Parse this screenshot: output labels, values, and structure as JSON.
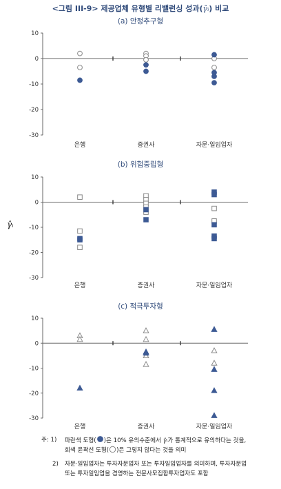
{
  "figure": {
    "title_prefix": "<그림 III-9> 제공업체 유형별 리밸런싱 성과(",
    "title_symbol": "γ̂ᵢ",
    "title_suffix": ") 비교",
    "y_axis_label": "γ̂ᵢ"
  },
  "colors": {
    "title": "#2f4a7a",
    "filled": "#3d5a94",
    "hollow_stroke": "#888888",
    "axis": "#666666"
  },
  "chart_data": [
    {
      "type": "scatter",
      "title": "(a) 안정추구형",
      "marker": "circle",
      "categories": [
        "은행",
        "증권사",
        "자문·일임업자"
      ],
      "ylim": [
        -30,
        10
      ],
      "yticks": [
        10,
        0,
        -10,
        -20,
        -30
      ],
      "series": [
        {
          "filled": false,
          "points": [
            [
              0,
              2
            ],
            [
              0,
              -3.5
            ],
            [
              1,
              2
            ],
            [
              1,
              1
            ],
            [
              1,
              -0.5
            ],
            [
              2,
              0
            ],
            [
              2,
              -3.5
            ]
          ]
        },
        {
          "filled": true,
          "points": [
            [
              0,
              -8.5
            ],
            [
              1,
              -2.5
            ],
            [
              1,
              -5
            ],
            [
              2,
              1.5
            ],
            [
              2,
              -5.5
            ],
            [
              2,
              -7
            ],
            [
              2,
              -9.5
            ]
          ]
        }
      ]
    },
    {
      "type": "scatter",
      "title": "(b) 위험중립형",
      "marker": "square",
      "categories": [
        "은행",
        "증권사",
        "자문·일임업자"
      ],
      "ylim": [
        -30,
        10
      ],
      "yticks": [
        10,
        0,
        -10,
        -20,
        -30
      ],
      "series": [
        {
          "filled": false,
          "points": [
            [
              0,
              2
            ],
            [
              0,
              -11.5
            ],
            [
              0,
              -18
            ],
            [
              1,
              2.5
            ],
            [
              1,
              1
            ],
            [
              1,
              -0.5
            ],
            [
              1,
              -2
            ],
            [
              1,
              -4
            ],
            [
              2,
              -2.5
            ],
            [
              2,
              -7.5
            ]
          ]
        },
        {
          "filled": true,
          "points": [
            [
              0,
              -14.5
            ],
            [
              0,
              -15
            ],
            [
              1,
              -3
            ],
            [
              1,
              -7
            ],
            [
              2,
              4
            ],
            [
              2,
              3
            ],
            [
              2,
              -9
            ],
            [
              2,
              -13.5
            ],
            [
              2,
              -14.5
            ]
          ]
        }
      ]
    },
    {
      "type": "scatter",
      "title": "(c) 적극투자형",
      "marker": "triangle",
      "categories": [
        "은행",
        "증권사",
        "자문·일임업자"
      ],
      "ylim": [
        -30,
        10
      ],
      "yticks": [
        10,
        0,
        -10,
        -20,
        -30
      ],
      "series": [
        {
          "filled": false,
          "points": [
            [
              0,
              3
            ],
            [
              0,
              1.5
            ],
            [
              1,
              5
            ],
            [
              1,
              1.5
            ],
            [
              1,
              -5
            ],
            [
              1,
              -8.5
            ],
            [
              2,
              -3
            ],
            [
              2,
              -8
            ]
          ]
        },
        {
          "filled": true,
          "points": [
            [
              0,
              -18
            ],
            [
              1,
              -3.5
            ],
            [
              1,
              -4
            ],
            [
              2,
              5.5
            ],
            [
              2,
              -10.5
            ],
            [
              2,
              -19
            ],
            [
              2,
              -29
            ]
          ]
        }
      ]
    }
  ],
  "notes": {
    "n1_prefix": "주: 1)",
    "n1_a": "파란색 도형(",
    "n1_b": ")은 10% 유의수준에서",
    "n1_sym": "γ̂ᵢ",
    "n1_c": "가 통계적으로 유의하다는 것을,",
    "n1_line2a": "회색 윤곽선 도형(",
    "n1_line2b": ")은 그렇지 않다는 것을 의미",
    "n2_prefix": "2)",
    "n2_line1": "자문·일임업자는 투자자문업자 또는 투자일임업자를 의미하며, 투자자문업",
    "n2_line2": "또는 투자일임업을 겸영하는 전문사모집합투자업자도 포함"
  }
}
